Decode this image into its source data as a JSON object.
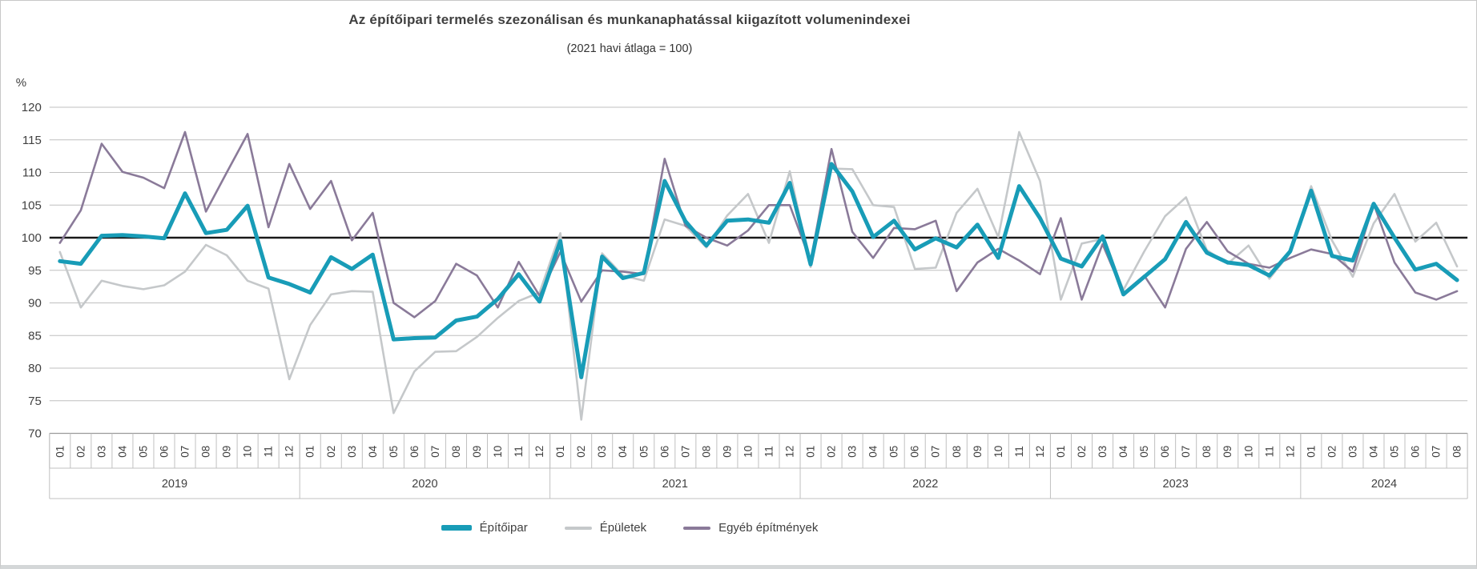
{
  "title": "Az építőipari termelés szezonálisan és munkanaphatással kiigazított volumenindexei",
  "subtitle": "(2021 havi átlaga = 100)",
  "y_axis": {
    "unit_label": "%",
    "ticks": [
      120,
      115,
      110,
      105,
      100,
      95,
      90,
      85,
      80,
      75,
      70
    ]
  },
  "legend": [
    {
      "label": "Építőipar",
      "color": "#189CB7",
      "swatch_w": 38,
      "swatch_h": 7
    },
    {
      "label": "Épületek",
      "color": "#C5C8CA",
      "swatch_w": 34,
      "swatch_h": 4
    },
    {
      "label": "Egyéb építmények",
      "color": "#8A7A99",
      "swatch_w": 34,
      "swatch_h": 4
    }
  ],
  "chart_data": {
    "type": "line",
    "title": "Az építőipari termelés szezonálisan és munkanaphatással kiigazított volumenindexei",
    "subtitle": "(2021 havi átlaga = 100)",
    "ylabel": "%",
    "ylim": [
      70,
      120
    ],
    "y_tick_step": 5,
    "reference_line": 100,
    "grid": true,
    "legend_position": "bottom",
    "categories": [
      "01",
      "02",
      "03",
      "04",
      "05",
      "06",
      "07",
      "08",
      "09",
      "10",
      "11",
      "12",
      "01",
      "02",
      "03",
      "04",
      "05",
      "06",
      "07",
      "08",
      "09",
      "10",
      "11",
      "12",
      "01",
      "02",
      "03",
      "04",
      "05",
      "06",
      "07",
      "08",
      "09",
      "10",
      "11",
      "12",
      "01",
      "02",
      "03",
      "04",
      "05",
      "06",
      "07",
      "08",
      "09",
      "10",
      "11",
      "12",
      "01",
      "02",
      "03",
      "04",
      "05",
      "06",
      "07",
      "08",
      "09",
      "10",
      "11",
      "12",
      "01",
      "02",
      "03",
      "04",
      "05",
      "06",
      "07",
      "08"
    ],
    "year_groups": [
      {
        "label": "2019",
        "months": 12
      },
      {
        "label": "2020",
        "months": 12
      },
      {
        "label": "2021",
        "months": 12
      },
      {
        "label": "2022",
        "months": 12
      },
      {
        "label": "2023",
        "months": 12
      },
      {
        "label": "2024",
        "months": 8
      }
    ],
    "series": [
      {
        "name": "Építőipar",
        "color": "#189CB7",
        "stroke_width": 5,
        "values": [
          96.4,
          96.0,
          100.3,
          100.4,
          100.2,
          99.9,
          106.8,
          100.7,
          101.2,
          104.9,
          93.9,
          92.9,
          91.6,
          97.0,
          95.2,
          97.4,
          84.4,
          84.6,
          84.7,
          87.3,
          87.9,
          90.6,
          94.4,
          90.2,
          99.5,
          78.6,
          97.1,
          93.8,
          94.6,
          108.7,
          102.5,
          98.8,
          102.6,
          102.8,
          102.3,
          108.4,
          95.9,
          111.3,
          107.1,
          100.1,
          102.6,
          98.2,
          99.9,
          98.5,
          102.0,
          96.9,
          107.9,
          103.0,
          96.8,
          95.6,
          100.2,
          91.3,
          94.0,
          96.7,
          102.4,
          97.7,
          96.2,
          95.8,
          94.2,
          97.9,
          107.2,
          97.2,
          96.5,
          105.2,
          100.0,
          95.1,
          96.0,
          93.5
        ]
      },
      {
        "name": "Épületek",
        "color": "#C5C8CA",
        "stroke_width": 2.6,
        "values": [
          97.8,
          89.3,
          93.4,
          92.6,
          92.1,
          92.7,
          94.8,
          98.9,
          97.3,
          93.4,
          92.2,
          78.3,
          86.6,
          91.3,
          91.8,
          91.7,
          73.1,
          79.5,
          82.5,
          82.6,
          84.8,
          87.7,
          90.3,
          91.6,
          100.7,
          72.1,
          97.6,
          94.2,
          93.4,
          102.8,
          101.8,
          98.5,
          103.4,
          106.7,
          99.2,
          110.2,
          95.5,
          110.6,
          110.5,
          105.0,
          104.7,
          95.2,
          95.4,
          103.8,
          107.5,
          100.1,
          116.2,
          108.7,
          90.5,
          99.1,
          99.8,
          92.0,
          97.9,
          103.3,
          106.2,
          98.1,
          96.0,
          98.8,
          93.7,
          97.7,
          107.9,
          99.6,
          94.0,
          102.2,
          106.7,
          99.4,
          102.3,
          95.6
        ]
      },
      {
        "name": "Egyéb építmények",
        "color": "#8A7A99",
        "stroke_width": 2.6,
        "values": [
          99.2,
          104.2,
          114.4,
          110.1,
          109.2,
          107.6,
          116.2,
          104.0,
          110.0,
          115.9,
          101.6,
          111.3,
          104.4,
          108.7,
          99.6,
          103.8,
          90.0,
          87.8,
          90.3,
          96.0,
          94.2,
          89.3,
          96.3,
          91.1,
          97.8,
          90.2,
          95.0,
          94.8,
          94.4,
          112.1,
          101.8,
          100.0,
          98.8,
          101.1,
          105.0,
          105.0,
          96.4,
          113.6,
          100.9,
          96.9,
          101.5,
          101.3,
          102.6,
          91.8,
          96.2,
          98.3,
          96.5,
          94.4,
          103.0,
          90.5,
          99.0,
          91.5,
          94.2,
          89.3,
          98.3,
          102.4,
          97.9,
          96.0,
          95.4,
          96.9,
          98.2,
          97.5,
          94.8,
          105.2,
          96.2,
          91.6,
          90.5,
          91.8
        ]
      }
    ]
  }
}
